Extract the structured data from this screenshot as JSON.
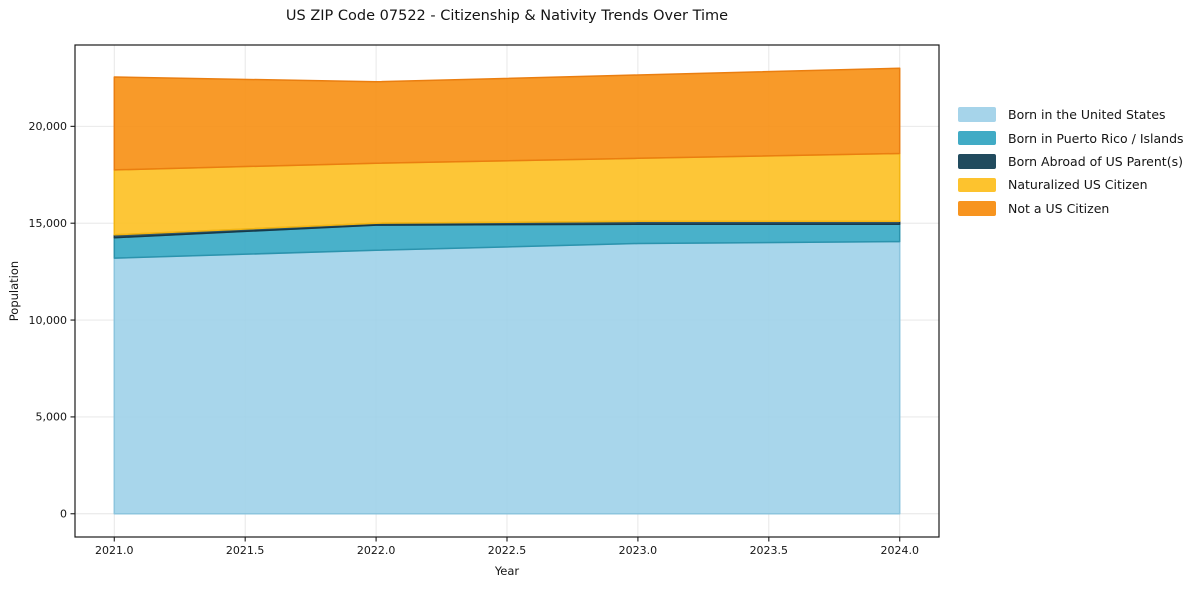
{
  "chart_data": {
    "type": "area",
    "stacked": true,
    "title": "US ZIP Code 07522 - Citizenship & Nativity Trends Over Time",
    "xlabel": "Year",
    "ylabel": "Population",
    "x": [
      2021,
      2022,
      2023,
      2024
    ],
    "series": [
      {
        "name": "Born in the United States",
        "color": "#9fd2e9",
        "edge_color": "#8cc5de",
        "values": [
          13200,
          13600,
          13950,
          14050
        ]
      },
      {
        "name": "Born in Puerto Rico / Islands",
        "color": "#35a8c4",
        "edge_color": "#2b93ad",
        "values": [
          1050,
          1300,
          1000,
          900
        ]
      },
      {
        "name": "Born Abroad of US Parent(s)",
        "color": "#17435a",
        "edge_color": "#16394a",
        "values": [
          150,
          100,
          150,
          150
        ]
      },
      {
        "name": "Naturalized US Citizen",
        "color": "#fdc021",
        "edge_color": "#f3b512",
        "values": [
          3350,
          3100,
          3250,
          3500
        ]
      },
      {
        "name": "Not a US Citizen",
        "color": "#f78f12",
        "edge_color": "#ea7e10",
        "values": [
          4800,
          4200,
          4300,
          4400
        ]
      }
    ],
    "legend_swatch_colors": [
      "#a6d4ea",
      "#41abc5",
      "#214b5e",
      "#fdc32e",
      "#f7941f"
    ],
    "totals": [
      22550,
      22300,
      22650,
      23000
    ],
    "xlim": [
      2020.85,
      2024.15
    ],
    "ylim": [
      -1200,
      24200
    ],
    "xticks": [
      2021.0,
      2021.5,
      2022.0,
      2022.5,
      2023.0,
      2023.5,
      2024.0
    ],
    "xtick_labels": [
      "2021.0",
      "2021.5",
      "2022.0",
      "2022.5",
      "2023.0",
      "2023.5",
      "2024.0"
    ],
    "yticks": [
      0,
      5000,
      10000,
      15000,
      20000
    ],
    "ytick_labels": [
      "0",
      "5,000",
      "10,000",
      "15,000",
      "20,000"
    ],
    "grid": true,
    "legend_position": "right",
    "grid_color": "#cfcfcf",
    "spine_color": "#1a1a1a",
    "text_color": "#151515"
  }
}
